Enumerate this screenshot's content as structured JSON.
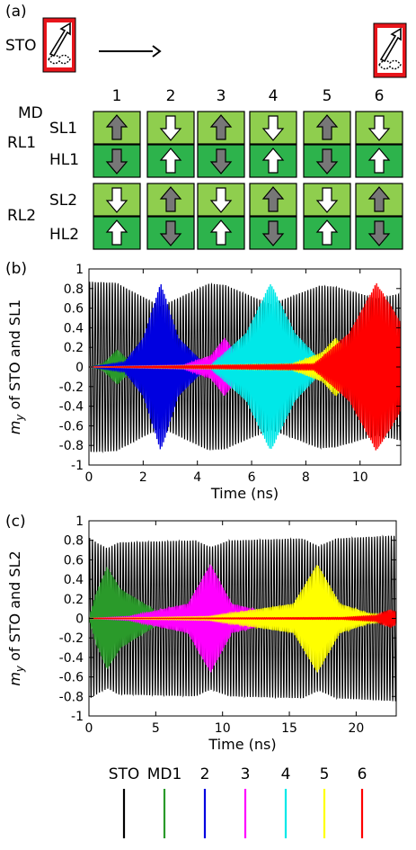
{
  "panel_a": {
    "label": "(a)",
    "sto_label": "STO",
    "md_label": "MD",
    "column_numbers": [
      "1",
      "2",
      "3",
      "4",
      "5",
      "6"
    ],
    "group_labels": [
      "RL1",
      "RL2"
    ],
    "layer_labels": [
      "SL1",
      "HL1",
      "SL2",
      "HL2"
    ],
    "grid": {
      "SL1": [
        "up",
        "down",
        "up",
        "down",
        "up",
        "down"
      ],
      "HL1": [
        "down",
        "up",
        "down",
        "up",
        "down",
        "up"
      ],
      "SL2": [
        "down",
        "up",
        "down",
        "up",
        "down",
        "up"
      ],
      "HL2": [
        "up",
        "down",
        "up",
        "down",
        "up",
        "down"
      ]
    },
    "colors": {
      "sto_box": "#e8151b",
      "light_green": "#8fce4e",
      "dark_green": "#2db34c",
      "arrow_dark": "#777777",
      "arrow_light": "#ffffff"
    }
  },
  "chart_data": [
    {
      "panel": "(b)",
      "type": "line",
      "title": "",
      "xlabel": "Time (ns)",
      "ylabel_main": "m",
      "ylabel_sub": "y",
      "ylabel_rest": " of STO and SL1",
      "xlim": [
        0,
        11.5
      ],
      "ylim": [
        -1,
        1
      ],
      "xticks": [
        "0",
        "2",
        "4",
        "6",
        "8",
        "10"
      ],
      "xtick_values": [
        0,
        2,
        4,
        6,
        8,
        10
      ],
      "yticks": [
        "1",
        "0.8",
        "0.6",
        "0.4",
        "0.2",
        "0",
        "-0.2",
        "-0.4",
        "-0.6",
        "-0.8",
        "-1"
      ],
      "ytick_values": [
        1,
        0.8,
        0.6,
        0.4,
        0.2,
        0,
        -0.2,
        -0.4,
        -0.6,
        -0.8,
        -1
      ],
      "series": [
        {
          "name": "STO",
          "color": "#000000",
          "envelope": [
            [
              0,
              0.87
            ],
            [
              1,
              0.86
            ],
            [
              2.65,
              0.62
            ],
            [
              4.4,
              0.85
            ],
            [
              5.0,
              0.84
            ],
            [
              6.7,
              0.64
            ],
            [
              8.5,
              0.83
            ],
            [
              9.1,
              0.82
            ],
            [
              10.6,
              0.7
            ],
            [
              11.5,
              0.75
            ]
          ]
        },
        {
          "name": "MD1",
          "color": "#2a9a2a",
          "envelope": [
            [
              0,
              0.0
            ],
            [
              0.5,
              0.03
            ],
            [
              1.05,
              0.18
            ],
            [
              1.6,
              0.03
            ],
            [
              3,
              0.01
            ],
            [
              11.5,
              0.0
            ]
          ]
        },
        {
          "name": "2",
          "color": "#0000e0",
          "envelope": [
            [
              0,
              0.0
            ],
            [
              1.3,
              0.05
            ],
            [
              2.0,
              0.3
            ],
            [
              2.65,
              0.86
            ],
            [
              3.3,
              0.3
            ],
            [
              4.2,
              0.05
            ],
            [
              5.5,
              0.01
            ],
            [
              11.5,
              0.0
            ]
          ]
        },
        {
          "name": "3",
          "color": "#ff00ff",
          "envelope": [
            [
              0,
              0.0
            ],
            [
              3.5,
              0.02
            ],
            [
              4.5,
              0.12
            ],
            [
              5.0,
              0.3
            ],
            [
              5.5,
              0.12
            ],
            [
              7,
              0.03
            ],
            [
              11.5,
              0.0
            ]
          ]
        },
        {
          "name": "4",
          "color": "#00e8e8",
          "envelope": [
            [
              0,
              0.0
            ],
            [
              4.5,
              0.02
            ],
            [
              5.8,
              0.35
            ],
            [
              6.7,
              0.86
            ],
            [
              7.6,
              0.35
            ],
            [
              8.6,
              0.05
            ],
            [
              11.5,
              0.0
            ]
          ]
        },
        {
          "name": "5",
          "color": "#ffff00",
          "envelope": [
            [
              0,
              0.0
            ],
            [
              7.5,
              0.03
            ],
            [
              8.6,
              0.15
            ],
            [
              9.1,
              0.3
            ],
            [
              9.6,
              0.15
            ],
            [
              10.5,
              0.05
            ],
            [
              11.5,
              0.0
            ]
          ]
        },
        {
          "name": "6",
          "color": "#ff0000",
          "envelope": [
            [
              0,
              0.0
            ],
            [
              8.3,
              0.03
            ],
            [
              9.6,
              0.35
            ],
            [
              10.6,
              0.86
            ],
            [
              11.2,
              0.6
            ],
            [
              11.5,
              0.45
            ]
          ]
        }
      ]
    },
    {
      "panel": "(c)",
      "type": "line",
      "title": "",
      "xlabel": "Time (ns)",
      "ylabel_main": "m",
      "ylabel_sub": "y",
      "ylabel_rest": " of STO and SL2",
      "xlim": [
        0,
        23
      ],
      "ylim": [
        -1,
        1
      ],
      "xticks": [
        "0",
        "5",
        "10",
        "15",
        "20"
      ],
      "xtick_values": [
        0,
        5,
        10,
        15,
        20
      ],
      "yticks": [
        "1",
        "0.8",
        "0.6",
        "0.4",
        "0.2",
        "0",
        "-0.2",
        "-0.4",
        "-0.6",
        "-0.8",
        "-1"
      ],
      "ytick_values": [
        1,
        0.8,
        0.6,
        0.4,
        0.2,
        0,
        -0.2,
        -0.4,
        -0.6,
        -0.8,
        -1
      ],
      "series": [
        {
          "name": "STO",
          "color": "#000000",
          "envelope": [
            [
              0,
              0.83
            ],
            [
              0.8,
              0.76
            ],
            [
              1.4,
              0.72
            ],
            [
              2.2,
              0.78
            ],
            [
              8,
              0.8
            ],
            [
              9.1,
              0.73
            ],
            [
              10.5,
              0.8
            ],
            [
              16,
              0.82
            ],
            [
              17.2,
              0.74
            ],
            [
              18.5,
              0.82
            ],
            [
              23,
              0.85
            ]
          ]
        },
        {
          "name": "MD1",
          "color": "#2a9a2a",
          "envelope": [
            [
              0,
              0.0
            ],
            [
              0.5,
              0.25
            ],
            [
              1.35,
              0.53
            ],
            [
              2.4,
              0.3
            ],
            [
              5,
              0.08
            ],
            [
              8,
              0.02
            ],
            [
              23,
              0.0
            ]
          ]
        },
        {
          "name": "3",
          "color": "#ff00ff",
          "envelope": [
            [
              0,
              0.0
            ],
            [
              3,
              0.02
            ],
            [
              7.4,
              0.15
            ],
            [
              9.1,
              0.56
            ],
            [
              10.7,
              0.15
            ],
            [
              14,
              0.04
            ],
            [
              23,
              0.0
            ]
          ]
        },
        {
          "name": "5",
          "color": "#ffff00",
          "envelope": [
            [
              0,
              0.0
            ],
            [
              9,
              0.02
            ],
            [
              15.3,
              0.15
            ],
            [
              17.1,
              0.56
            ],
            [
              18.8,
              0.15
            ],
            [
              21,
              0.05
            ],
            [
              23,
              0.02
            ]
          ]
        },
        {
          "name": "6",
          "color": "#ff0000",
          "envelope": [
            [
              0,
              0.0
            ],
            [
              19,
              0.01
            ],
            [
              21.5,
              0.03
            ],
            [
              22.5,
              0.09
            ],
            [
              23,
              0.07
            ]
          ]
        }
      ]
    }
  ],
  "legend": {
    "entries": [
      {
        "label": "STO",
        "color": "#000000"
      },
      {
        "label": "MD1",
        "color": "#2a9a2a"
      },
      {
        "label": "2",
        "color": "#0000e0"
      },
      {
        "label": "3",
        "color": "#ff00ff"
      },
      {
        "label": "4",
        "color": "#00e8e8"
      },
      {
        "label": "5",
        "color": "#ffff00"
      },
      {
        "label": "6",
        "color": "#ff0000"
      }
    ]
  }
}
